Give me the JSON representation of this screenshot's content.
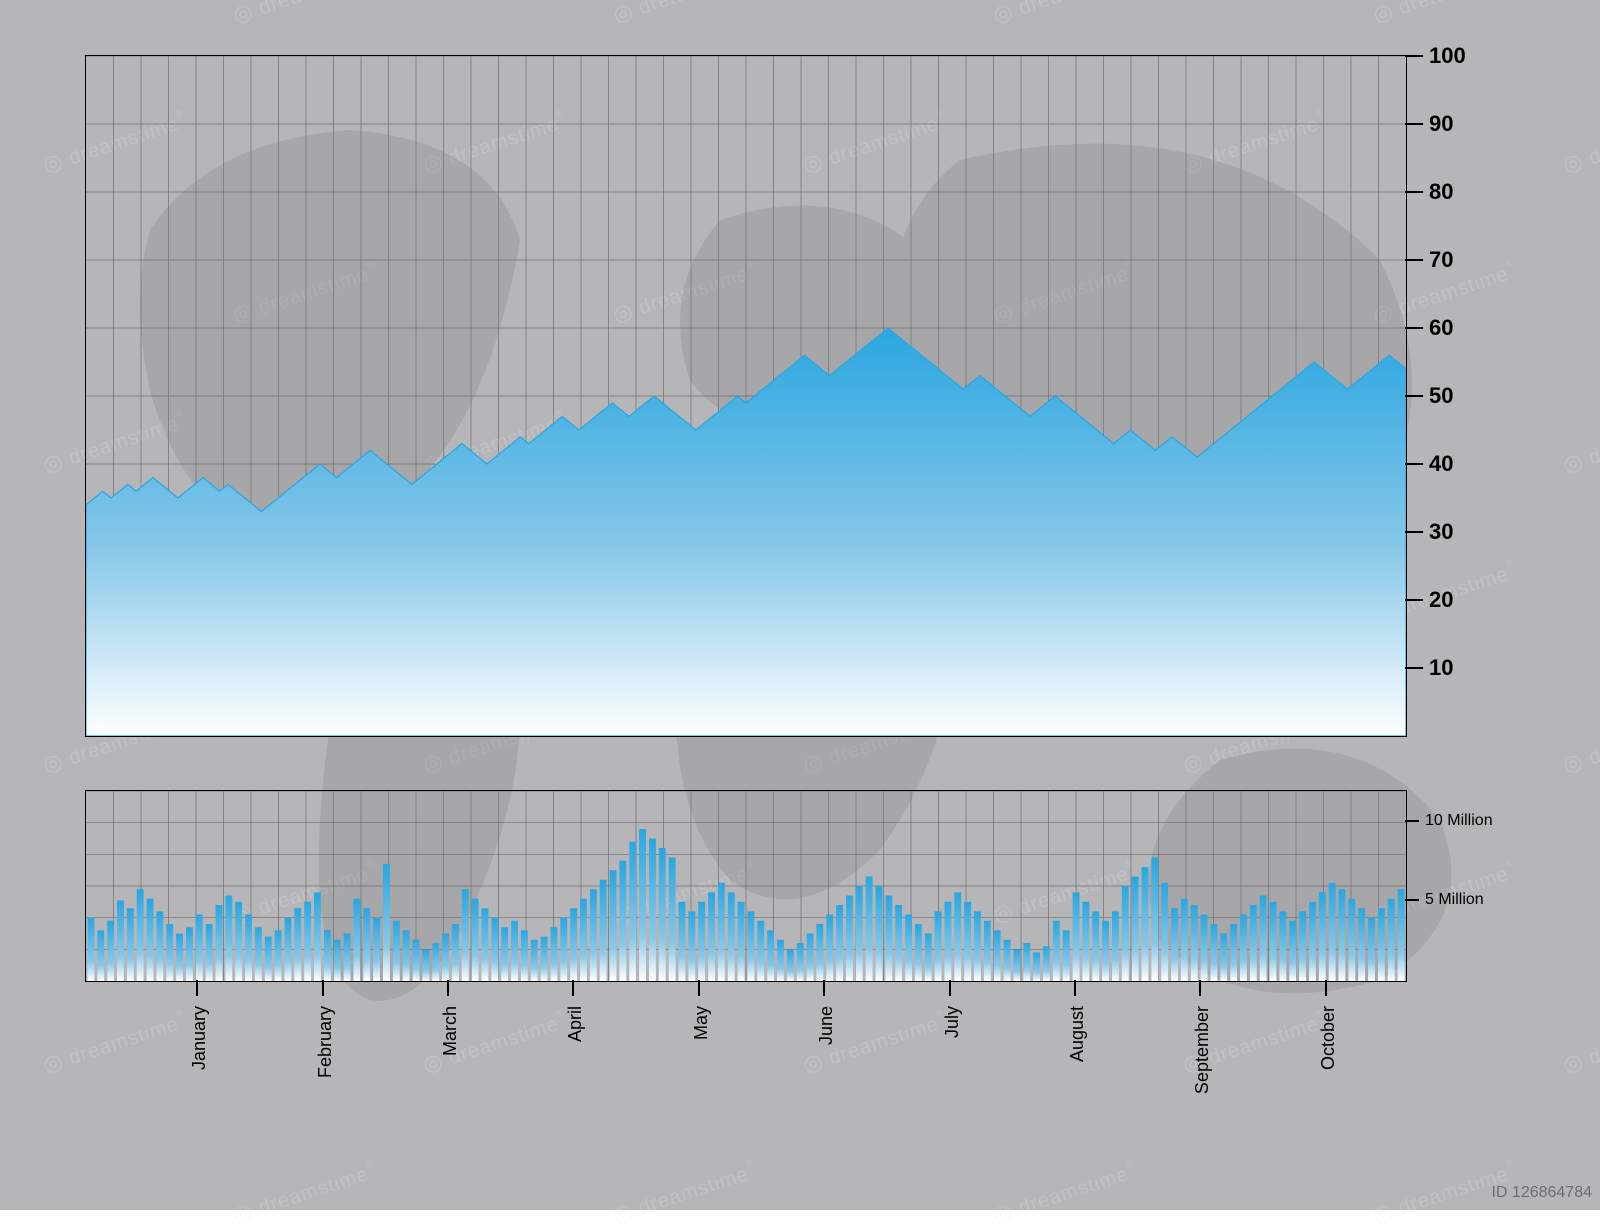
{
  "colors": {
    "page_bg": "#b6b6b8",
    "grid": "#6f6f72",
    "axis": "#000000",
    "area_top": "#2aa6e0",
    "area_mid": "#89c8e9",
    "area_bot": "#ffffff",
    "text": "#000000",
    "map": "#8c8c90",
    "watermark": "#e2e2e4"
  },
  "watermark": {
    "text": "dreamstime",
    "id": "ID 126864784",
    "diag_rows": 9,
    "diag_per_row": 5,
    "opacity": 0.25
  },
  "main_chart": {
    "type": "area",
    "ylim": [
      0,
      100
    ],
    "yticks": [
      10,
      20,
      30,
      40,
      50,
      60,
      70,
      80,
      90,
      100
    ],
    "yticklabels": [
      "10",
      "20",
      "30",
      "40",
      "50",
      "60",
      "70",
      "80",
      "90",
      "100"
    ],
    "grid_minor_x_count": 48,
    "grid_major_y_step": 10,
    "series": [
      34,
      35,
      36,
      35,
      36,
      37,
      36,
      37,
      38,
      37,
      36,
      35,
      36,
      37,
      38,
      37,
      36,
      37,
      36,
      35,
      34,
      33,
      34,
      35,
      36,
      37,
      38,
      39,
      40,
      39,
      38,
      39,
      40,
      41,
      42,
      41,
      40,
      39,
      38,
      37,
      38,
      39,
      40,
      41,
      42,
      43,
      42,
      41,
      40,
      41,
      42,
      43,
      44,
      43,
      44,
      45,
      46,
      47,
      46,
      45,
      46,
      47,
      48,
      49,
      48,
      47,
      48,
      49,
      50,
      49,
      48,
      47,
      46,
      45,
      46,
      47,
      48,
      49,
      50,
      49,
      50,
      51,
      52,
      53,
      54,
      55,
      56,
      55,
      54,
      53,
      54,
      55,
      56,
      57,
      58,
      59,
      60,
      59,
      58,
      57,
      56,
      55,
      54,
      53,
      52,
      51,
      52,
      53,
      52,
      51,
      50,
      49,
      48,
      47,
      48,
      49,
      50,
      49,
      48,
      47,
      46,
      45,
      44,
      43,
      44,
      45,
      44,
      43,
      42,
      43,
      44,
      43,
      42,
      41,
      42,
      43,
      44,
      45,
      46,
      47,
      48,
      49,
      50,
      51,
      52,
      53,
      54,
      55,
      54,
      53,
      52,
      51,
      52,
      53,
      54,
      55,
      56,
      55,
      54
    ],
    "title_fontsize": 22
  },
  "volume_chart": {
    "type": "bar",
    "ylim": [
      0,
      12
    ],
    "yticks": [
      5,
      10
    ],
    "yticklabels": [
      "5 Million",
      "10 Million"
    ],
    "grid_y_count": 6,
    "bars": [
      4.0,
      3.2,
      3.8,
      5.1,
      4.6,
      5.8,
      5.2,
      4.4,
      3.6,
      3.0,
      3.4,
      4.2,
      3.6,
      4.8,
      5.4,
      5.0,
      4.2,
      3.4,
      2.8,
      3.2,
      4.0,
      4.6,
      5.0,
      5.6,
      3.2,
      2.6,
      3.0,
      5.2,
      4.6,
      4.0,
      7.4,
      3.8,
      3.2,
      2.6,
      2.0,
      2.4,
      3.0,
      3.6,
      5.8,
      5.2,
      4.6,
      4.0,
      3.4,
      3.8,
      3.2,
      2.6,
      2.8,
      3.4,
      4.0,
      4.6,
      5.2,
      5.8,
      6.4,
      7.0,
      7.6,
      8.8,
      9.6,
      9.0,
      8.4,
      7.8,
      5.0,
      4.4,
      5.0,
      5.6,
      6.2,
      5.6,
      5.0,
      4.4,
      3.8,
      3.2,
      2.6,
      2.0,
      2.4,
      3.0,
      3.6,
      4.2,
      4.8,
      5.4,
      6.0,
      6.6,
      6.0,
      5.4,
      4.8,
      4.2,
      3.6,
      3.0,
      4.4,
      5.0,
      5.6,
      5.0,
      4.4,
      3.8,
      3.2,
      2.6,
      2.0,
      2.4,
      1.8,
      2.2,
      3.8,
      3.2,
      5.6,
      5.0,
      4.4,
      3.8,
      4.4,
      6.0,
      6.6,
      7.2,
      7.8,
      6.2,
      4.6,
      5.2,
      4.8,
      4.2,
      3.6,
      3.0,
      3.6,
      4.2,
      4.8,
      5.4,
      5.0,
      4.4,
      3.8,
      4.4,
      5.0,
      5.6,
      6.2,
      5.8,
      5.2,
      4.6,
      4.0,
      4.6,
      5.2,
      5.8
    ]
  },
  "x_axis": {
    "months": [
      "January",
      "February",
      "March",
      "April",
      "May",
      "June",
      "July",
      "August",
      "September",
      "October"
    ],
    "month_positions_pct": [
      8.5,
      18,
      27.5,
      37,
      46.5,
      56,
      65.5,
      75,
      84.5,
      94
    ]
  }
}
